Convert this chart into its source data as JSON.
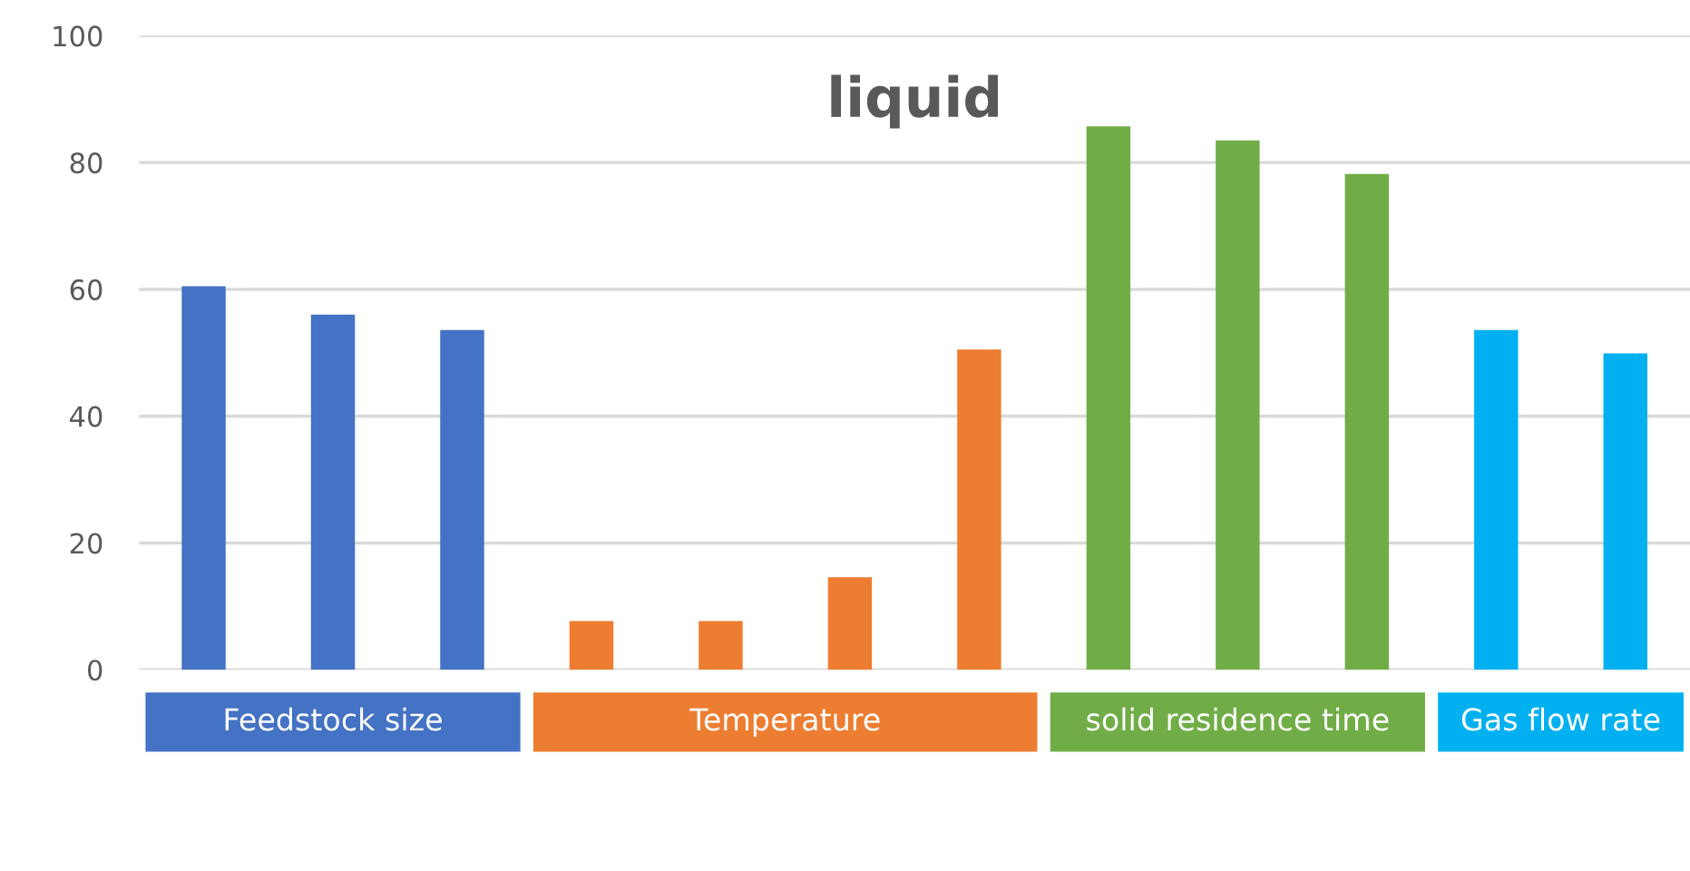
{
  "chart_data": {
    "type": "bar",
    "title": "liquid",
    "categories": [
      null,
      null,
      null,
      null,
      null,
      null,
      null,
      null,
      null,
      null,
      null,
      null
    ],
    "values": [
      60.5,
      56,
      53.6,
      7.7,
      7.7,
      14.6,
      50.5,
      85.7,
      83.5,
      78.2,
      53.6,
      49.9
    ],
    "colors": [
      "#4472c4",
      "#4472c4",
      "#4472c4",
      "#ed7d31",
      "#ed7d31",
      "#ed7d31",
      "#ed7d31",
      "#70ad47",
      "#70ad47",
      "#70ad47",
      "#00b0f0",
      "#00b0f0"
    ],
    "annotations": [
      "Feedstock size",
      "Temperature",
      "solid residence time",
      "Gas flow rate"
    ],
    "ylim": [
      0,
      100
    ],
    "yticks": [
      0,
      20,
      40,
      60,
      80,
      100
    ],
    "grid": "y"
  }
}
